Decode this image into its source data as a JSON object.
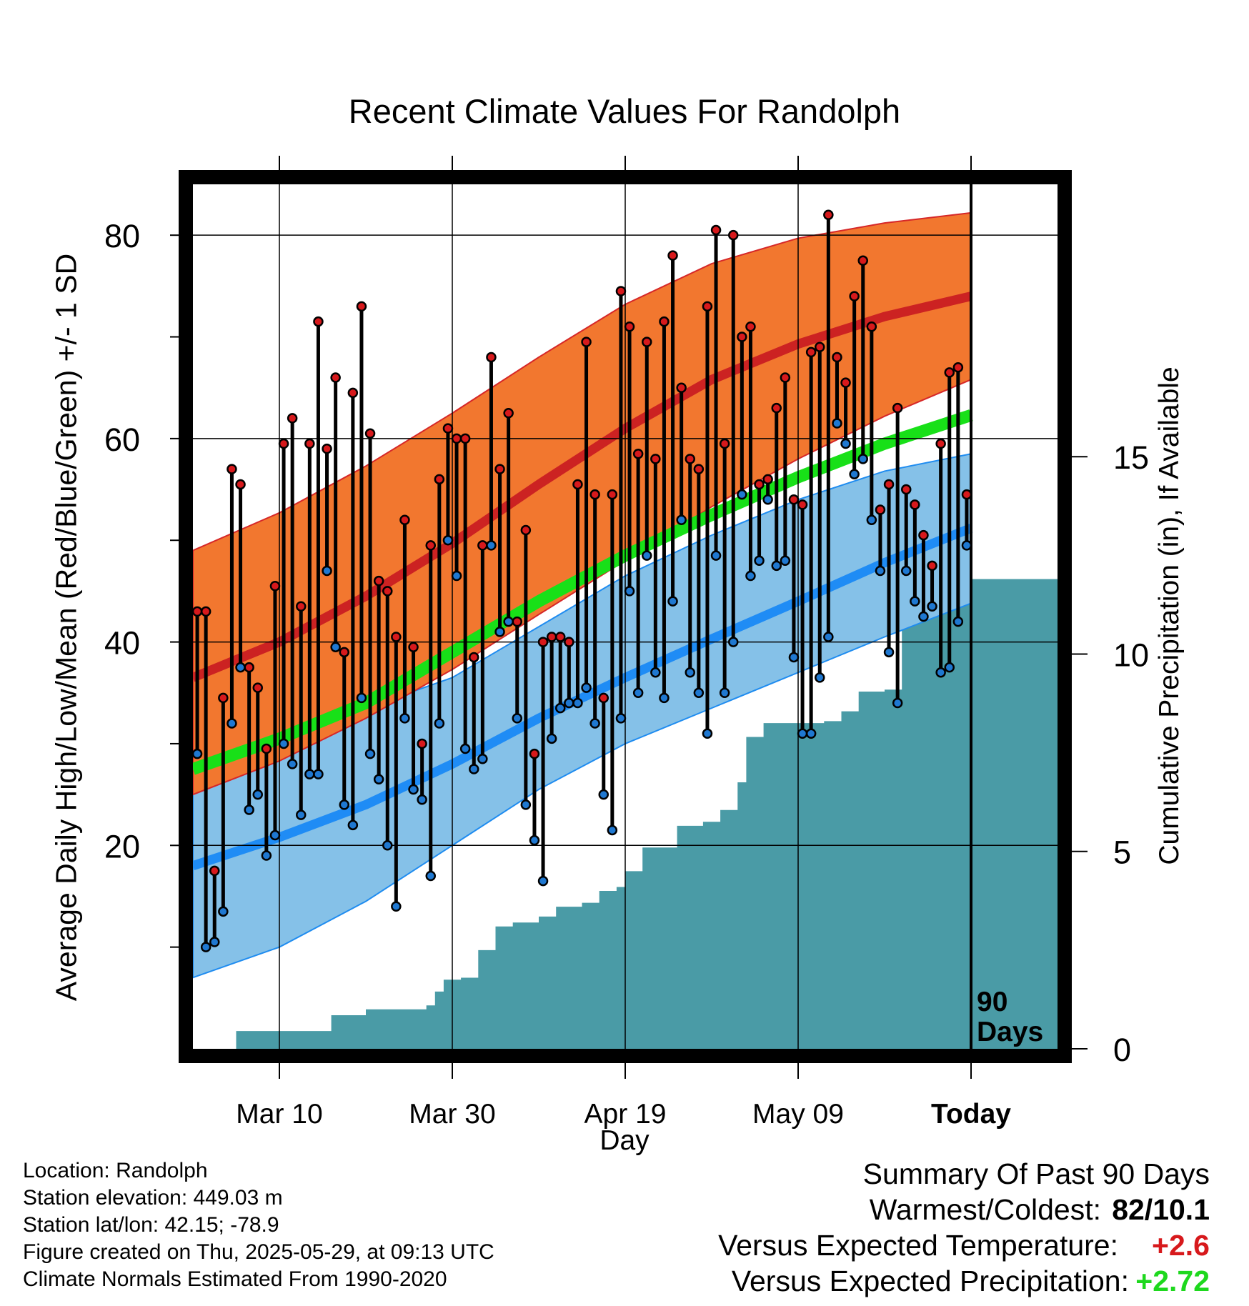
{
  "title": "Recent Climate Values For Randolph",
  "chart_data": {
    "type": "line",
    "title": "Recent Climate Values For Randolph",
    "xlabel": "Day",
    "ylabel": "Average Daily High/Low/Mean (Red/Blue/Green) +/- 1 SD",
    "y2label": "Cumulative Precipitation (in), If Available",
    "ylim": [
      0,
      85
    ],
    "y2lim": [
      0,
      21.9
    ],
    "x_ticks": [
      "Mar 10",
      "Mar 30",
      "Apr 19",
      "May 09",
      "Today"
    ],
    "y_ticks": [
      20,
      40,
      60,
      80
    ],
    "y2_ticks": [
      0,
      5,
      10,
      15
    ],
    "window_label": "90 Days",
    "grid": true,
    "normals": {
      "high_mean": [
        [
          0,
          36.5
        ],
        [
          10,
          40.0
        ],
        [
          20,
          44.5
        ],
        [
          30,
          49.7
        ],
        [
          40,
          55.5
        ],
        [
          50,
          61.0
        ],
        [
          60,
          65.8
        ],
        [
          70,
          69.3
        ],
        [
          80,
          72.0
        ],
        [
          90,
          74.0
        ]
      ],
      "high_sd_upper": [
        [
          0,
          49.0
        ],
        [
          10,
          52.7
        ],
        [
          20,
          57.3
        ],
        [
          30,
          62.5
        ],
        [
          40,
          68.0
        ],
        [
          50,
          73.2
        ],
        [
          60,
          77.2
        ],
        [
          70,
          79.7
        ],
        [
          80,
          81.2
        ],
        [
          90,
          82.2
        ]
      ],
      "high_sd_lower": [
        [
          0,
          25.0
        ],
        [
          10,
          28.3
        ],
        [
          20,
          32.5
        ],
        [
          30,
          37.3
        ],
        [
          40,
          42.7
        ],
        [
          50,
          48.0
        ],
        [
          60,
          53.3
        ],
        [
          70,
          58.0
        ],
        [
          80,
          62.2
        ],
        [
          90,
          65.8
        ]
      ],
      "low_mean": [
        [
          0,
          18.0
        ],
        [
          10,
          20.8
        ],
        [
          20,
          24.0
        ],
        [
          30,
          28.0
        ],
        [
          40,
          32.5
        ],
        [
          50,
          36.5
        ],
        [
          60,
          40.3
        ],
        [
          70,
          44.0
        ],
        [
          80,
          47.8
        ],
        [
          90,
          51.2
        ]
      ],
      "low_sd_upper": [
        [
          0,
          29.5
        ],
        [
          10,
          31.5
        ],
        [
          20,
          33.5
        ],
        [
          30,
          36.5
        ],
        [
          40,
          41.5
        ],
        [
          50,
          46.5
        ],
        [
          60,
          50.5
        ],
        [
          70,
          54.0
        ],
        [
          80,
          56.8
        ],
        [
          90,
          58.5
        ]
      ],
      "low_sd_lower": [
        [
          0,
          7.0
        ],
        [
          10,
          10.0
        ],
        [
          20,
          14.5
        ],
        [
          30,
          20.0
        ],
        [
          40,
          25.5
        ],
        [
          50,
          30.0
        ],
        [
          60,
          33.5
        ],
        [
          70,
          37.0
        ],
        [
          80,
          40.5
        ],
        [
          90,
          43.8
        ]
      ],
      "daily_mean": [
        [
          0,
          27.5
        ],
        [
          10,
          30.5
        ],
        [
          20,
          34.0
        ],
        [
          30,
          39.0
        ],
        [
          40,
          44.0
        ],
        [
          50,
          48.5
        ],
        [
          60,
          52.5
        ],
        [
          70,
          56.2
        ],
        [
          80,
          59.5
        ],
        [
          90,
          62.3
        ]
      ]
    },
    "series": [
      {
        "name": "High",
        "color": "#d7191c",
        "values": [
          43,
          43,
          17.5,
          34.5,
          57,
          55.5,
          37.5,
          35.5,
          29.5,
          45.5,
          59.5,
          62,
          43.5,
          59.5,
          71.5,
          59,
          66,
          39,
          64.5,
          73,
          60.5,
          46,
          45,
          40.5,
          52,
          39.5,
          30,
          49.5,
          56,
          61,
          60,
          60,
          38.5,
          49.5,
          68,
          57,
          62.5,
          42,
          51,
          29,
          40,
          40.5,
          40.5,
          40,
          55.5,
          69.5,
          54.5,
          34.5,
          54.5,
          74.5,
          71,
          58.5,
          69.5,
          58,
          71.5,
          78,
          65,
          58,
          57,
          73,
          80.5,
          59.5,
          80,
          70,
          71,
          55.5,
          56,
          63,
          66,
          54,
          53.5,
          68.5,
          69,
          82,
          68,
          65.5,
          74,
          77.5,
          71,
          53,
          55.5,
          63,
          55,
          53.5,
          50.5,
          47.5,
          59.5,
          66.5,
          67,
          54.5
        ]
      },
      {
        "name": "Low",
        "color": "#1f78d1",
        "values": [
          29,
          10,
          10.5,
          13.5,
          32,
          37.5,
          23.5,
          25,
          19,
          21,
          30,
          28,
          23,
          27,
          27,
          47,
          39.5,
          24,
          22,
          34.5,
          29,
          26.5,
          20,
          14,
          32.5,
          25.5,
          24.5,
          17,
          32,
          50,
          46.5,
          29.5,
          27.5,
          28.5,
          49.5,
          41,
          42,
          32.5,
          24,
          20.5,
          16.5,
          30.5,
          33.5,
          34,
          34,
          35.5,
          32,
          25,
          21.5,
          32.5,
          45,
          35,
          48.5,
          37,
          34.5,
          44,
          52,
          37,
          35,
          31,
          48.5,
          35,
          40,
          54.5,
          46.5,
          48,
          54,
          47.5,
          48,
          38.5,
          31,
          31,
          36.5,
          40.5,
          61.5,
          59.5,
          56.5,
          58,
          52,
          47,
          39,
          34,
          47,
          44,
          42.5,
          43.5,
          37,
          37.5,
          42,
          49.5
        ]
      },
      {
        "name": "Precipitation",
        "color": "#4a9ba6",
        "cumulative": [
          [
            0,
            0
          ],
          [
            4,
            0
          ],
          [
            5,
            0.45
          ],
          [
            15,
            0.45
          ],
          [
            16,
            0.85
          ],
          [
            19,
            0.85
          ],
          [
            20,
            1.0
          ],
          [
            26,
            1.0
          ],
          [
            27,
            1.1
          ],
          [
            28,
            1.45
          ],
          [
            29,
            1.75
          ],
          [
            31,
            1.8
          ],
          [
            33,
            2.5
          ],
          [
            35,
            3.1
          ],
          [
            37,
            3.2
          ],
          [
            40,
            3.35
          ],
          [
            42,
            3.6
          ],
          [
            45,
            3.7
          ],
          [
            47,
            4.0
          ],
          [
            49,
            4.1
          ],
          [
            50,
            4.5
          ],
          [
            52,
            5.1
          ],
          [
            55,
            5.1
          ],
          [
            56,
            5.65
          ],
          [
            59,
            5.75
          ],
          [
            61,
            6.05
          ],
          [
            63,
            6.75
          ],
          [
            64,
            7.9
          ],
          [
            66,
            8.25
          ],
          [
            70,
            8.25
          ],
          [
            73,
            8.3
          ],
          [
            75,
            8.55
          ],
          [
            77,
            9.05
          ],
          [
            80,
            9.1
          ],
          [
            82,
            10.85
          ],
          [
            83,
            11.05
          ],
          [
            86,
            11.1
          ],
          [
            87,
            11.8
          ],
          [
            89,
            11.9
          ],
          [
            90,
            11.9
          ]
        ]
      }
    ]
  },
  "info": {
    "location": "Location: Randolph",
    "elevation": "Station elevation: 449.03 m",
    "latlon": "Station lat/lon: 42.15; -78.9",
    "created": "Figure created on Thu, 2025-05-29, at 09:13 UTC",
    "normals": "Climate Normals Estimated From 1990-2020"
  },
  "summary": {
    "heading": "Summary Of Past 90 Days",
    "warmest_label": "Warmest/Coldest:",
    "warmest_value": "82/10.1",
    "temp_label": "Versus Expected Temperature:",
    "temp_value": "+2.6",
    "precip_label": "Versus Expected Precipitation:",
    "precip_value": "+2.72"
  }
}
